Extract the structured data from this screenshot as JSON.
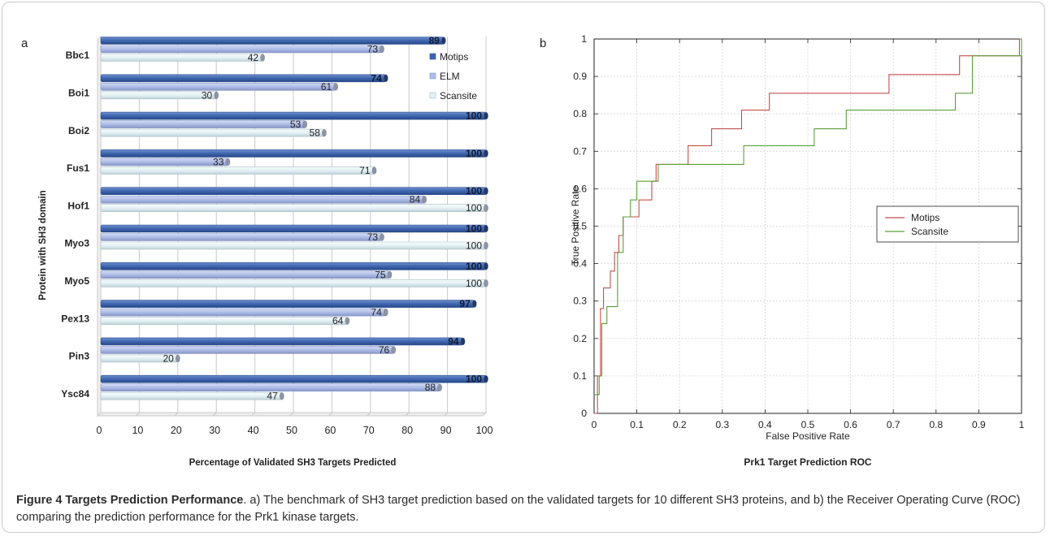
{
  "panel_labels": {
    "a": "a",
    "b": "b"
  },
  "caption": {
    "lead": "Figure 4 Targets Prediction Performance",
    "text": ". a) The benchmark of SH3 target prediction based on the validated targets for 10 different SH3 proteins, and b) the Receiver Operating Curve (ROC) comparing the prediction performance for the Prk1 kinase targets."
  },
  "chart_data": [
    {
      "type": "bar",
      "orientation": "horizontal",
      "xlabel": "Percentage of Validated SH3 Targets Predicted",
      "ylabel": "Protein with SH3 domain",
      "xlim": [
        0,
        100
      ],
      "xticks": [
        "0",
        "10",
        "20",
        "30",
        "40",
        "50",
        "60",
        "70",
        "80",
        "90",
        "100"
      ],
      "grid": true,
      "legend_position": "top-right",
      "categories": [
        "Bbc1",
        "Boi1",
        "Boi2",
        "Fus1",
        "Hof1",
        "Myo3",
        "Myo5",
        "Pex13",
        "Pin3",
        "Ysc84"
      ],
      "series": [
        {
          "name": "Motips",
          "color": "#3f66ae",
          "values": [
            89,
            74,
            100,
            100,
            100,
            100,
            100,
            97,
            94,
            100
          ]
        },
        {
          "name": "ELM",
          "color": "#aebce6",
          "values": [
            73,
            61,
            53,
            33,
            84,
            73,
            75,
            74,
            76,
            88
          ]
        },
        {
          "name": "Scansite",
          "color": "#e4f1f5",
          "values": [
            42,
            30,
            58,
            71,
            100,
            100,
            100,
            64,
            20,
            47
          ]
        }
      ]
    },
    {
      "type": "line",
      "title": "Prk1 Target Prediction ROC",
      "xlabel": "False Positive Rate",
      "ylabel": "True Positive Rate",
      "xlim": [
        0,
        1
      ],
      "ylim": [
        0,
        1
      ],
      "xticks": [
        "0",
        "0.1",
        "0.2",
        "0.3",
        "0.4",
        "0.5",
        "0.6",
        "0.7",
        "0.8",
        "0.9",
        "1"
      ],
      "yticks": [
        "0",
        "0.1",
        "0.2",
        "0.3",
        "0.4",
        "0.5",
        "0.6",
        "0.7",
        "0.8",
        "0.9",
        "1"
      ],
      "grid": true,
      "legend_position": "center-right",
      "series": [
        {
          "name": "Motips",
          "color": "#c0504d",
          "x": [
            0,
            0.008,
            0.008,
            0.015,
            0.015,
            0.022,
            0.022,
            0.038,
            0.038,
            0.048,
            0.048,
            0.058,
            0.058,
            0.068,
            0.068,
            0.071,
            0.071,
            0.105,
            0.105,
            0.135,
            0.135,
            0.145,
            0.145,
            0.22,
            0.22,
            0.275,
            0.275,
            0.345,
            0.345,
            0.41,
            0.41,
            0.69,
            0.69,
            0.855,
            0.855,
            0.995,
            0.995,
            1
          ],
          "y": [
            0,
            0,
            0.1,
            0.1,
            0.28,
            0.28,
            0.335,
            0.335,
            0.38,
            0.38,
            0.43,
            0.43,
            0.475,
            0.475,
            0.525,
            0.525,
            0.525,
            0.525,
            0.57,
            0.57,
            0.62,
            0.62,
            0.665,
            0.665,
            0.715,
            0.715,
            0.76,
            0.76,
            0.81,
            0.81,
            0.855,
            0.855,
            0.905,
            0.905,
            0.955,
            0.955,
            1,
            1
          ]
        },
        {
          "name": "Scansite",
          "color": "#5aa03c",
          "x": [
            0,
            0.012,
            0.012,
            0.018,
            0.018,
            0.03,
            0.03,
            0.055,
            0.055,
            0.068,
            0.068,
            0.085,
            0.085,
            0.1,
            0.1,
            0.15,
            0.15,
            0.35,
            0.35,
            0.515,
            0.515,
            0.59,
            0.59,
            0.845,
            0.845,
            0.885,
            0.885,
            1,
            1
          ],
          "y": [
            0.05,
            0.05,
            0.1,
            0.1,
            0.24,
            0.24,
            0.285,
            0.285,
            0.43,
            0.43,
            0.525,
            0.525,
            0.57,
            0.57,
            0.62,
            0.62,
            0.665,
            0.665,
            0.715,
            0.715,
            0.76,
            0.76,
            0.81,
            0.81,
            0.855,
            0.855,
            0.955,
            0.955,
            1
          ]
        }
      ]
    }
  ]
}
